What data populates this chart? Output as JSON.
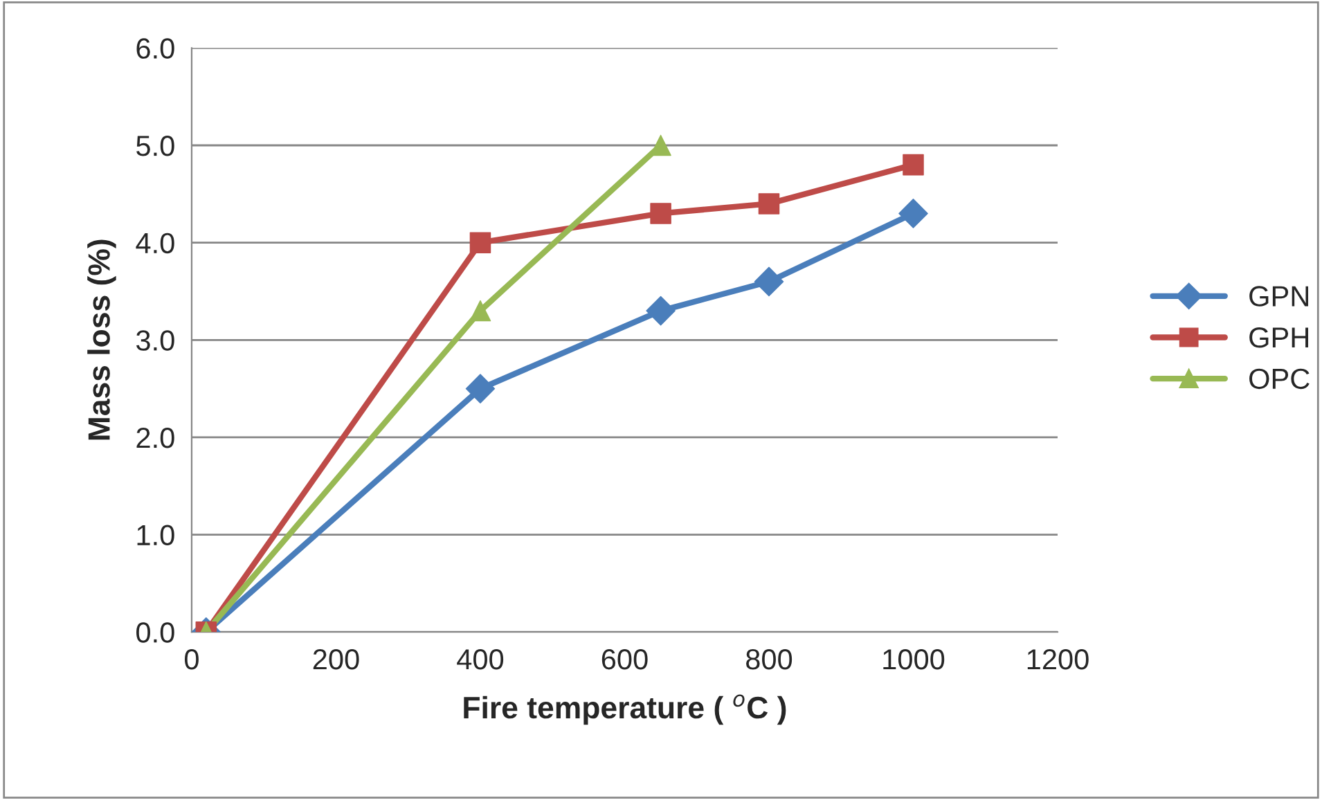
{
  "chart_data": {
    "type": "line",
    "xlabel": "Fire temperature ( $^{o}$C )",
    "ylabel": "Mass loss (%)",
    "xlim": [
      0,
      1200
    ],
    "xticks": [
      0,
      200,
      400,
      600,
      800,
      1000,
      1200
    ],
    "ylim": [
      0,
      6
    ],
    "yticks": [
      {
        "value": 0,
        "label": "0.0"
      },
      {
        "value": 1,
        "label": "1.0"
      },
      {
        "value": 2,
        "label": "2.0"
      },
      {
        "value": 3,
        "label": "3.0"
      },
      {
        "value": 4,
        "label": "4.0"
      },
      {
        "value": 5,
        "label": "5.0"
      },
      {
        "value": 6,
        "label": "6.0"
      }
    ],
    "grid": "y",
    "legend": "right",
    "line_style": "solid",
    "series": [
      {
        "name": "GPN",
        "color": "#4a7ebb",
        "marker": "diamond",
        "x": [
          20,
          400,
          650,
          800,
          1000
        ],
        "values": [
          0,
          2.5,
          3.3,
          3.6,
          4.3
        ]
      },
      {
        "name": "GPH",
        "color": "#be4b48",
        "marker": "square",
        "x": [
          20,
          400,
          650,
          800,
          1000
        ],
        "values": [
          0,
          4.0,
          4.3,
          4.4,
          4.8
        ]
      },
      {
        "name": "OPC",
        "color": "#98b954",
        "marker": "triangle",
        "x": [
          20,
          400,
          650
        ],
        "values": [
          0,
          3.3,
          5.0
        ]
      }
    ]
  }
}
